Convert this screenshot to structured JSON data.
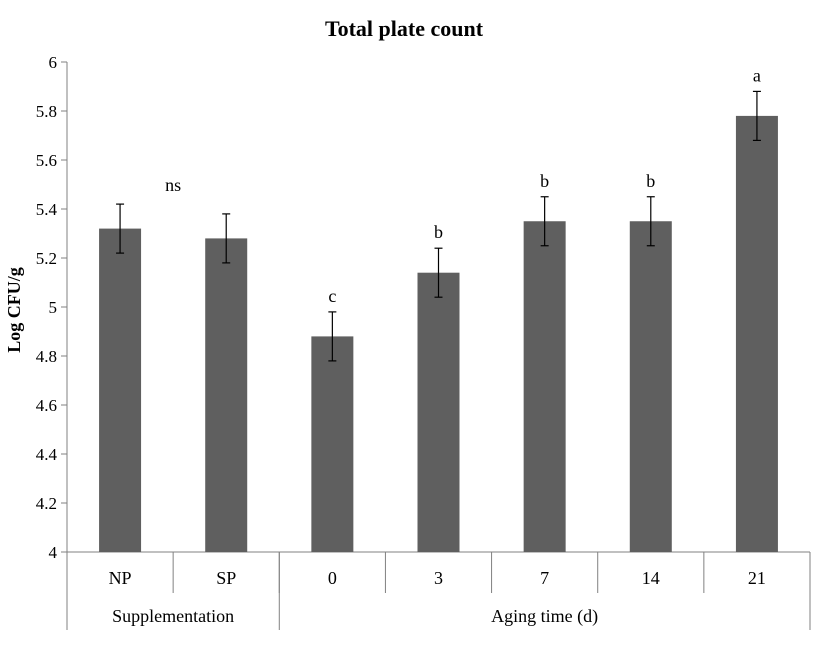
{
  "chart_data": {
    "type": "bar",
    "title": "Total plate count",
    "ylabel": "Log CFU/g",
    "xlabel": "",
    "ylim": [
      4,
      6
    ],
    "yticks": [
      "4",
      "4.2",
      "4.4",
      "4.6",
      "4.8",
      "5",
      "5.2",
      "5.4",
      "5.6",
      "5.8",
      "6"
    ],
    "grid": false,
    "categories": [
      "NP",
      "SP",
      "0",
      "3",
      "7",
      "14",
      "21"
    ],
    "values": [
      5.32,
      5.28,
      4.88,
      5.14,
      5.35,
      5.35,
      5.78
    ],
    "error": [
      0.1,
      0.1,
      0.1,
      0.1,
      0.1,
      0.1,
      0.1
    ],
    "bar_annotations": [
      "",
      "",
      "c",
      "b",
      "b",
      "b",
      "a"
    ],
    "group_annotation": "ns",
    "groups": [
      {
        "label": "Supplementation",
        "categories": [
          "NP",
          "SP"
        ]
      },
      {
        "label": "Aging time (d)",
        "categories": [
          "0",
          "3",
          "7",
          "14",
          "21"
        ]
      }
    ],
    "bar_color": "#5f5f5f"
  }
}
